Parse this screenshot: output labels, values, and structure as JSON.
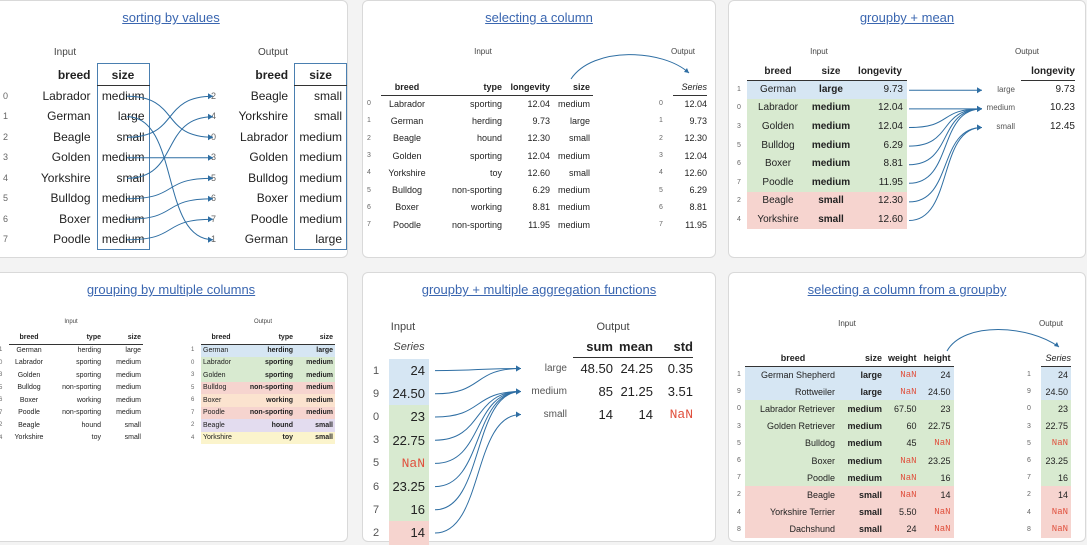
{
  "colors": {
    "blue": "#d6e6f3",
    "green": "#d8ead0",
    "red": "#f6d4cf",
    "orange": "#fbe3cf",
    "purple": "#e3dcef",
    "yellow": "#fbf4cc",
    "link": "#3a66b0",
    "arrow": "#2e6ea3"
  },
  "panel1": {
    "title": "sorting by values",
    "input_label": "Input",
    "output_label": "Output",
    "headers": [
      "breed",
      "size"
    ],
    "input_rows": [
      [
        "0",
        "Labrador",
        "medium"
      ],
      [
        "1",
        "German",
        "large"
      ],
      [
        "2",
        "Beagle",
        "small"
      ],
      [
        "3",
        "Golden",
        "medium"
      ],
      [
        "4",
        "Yorkshire",
        "small"
      ],
      [
        "5",
        "Bulldog",
        "medium"
      ],
      [
        "6",
        "Boxer",
        "medium"
      ],
      [
        "7",
        "Poodle",
        "medium"
      ]
    ],
    "output_rows": [
      [
        "2",
        "Beagle",
        "small"
      ],
      [
        "4",
        "Yorkshire",
        "small"
      ],
      [
        "0",
        "Labrador",
        "medium"
      ],
      [
        "3",
        "Golden",
        "medium"
      ],
      [
        "5",
        "Bulldog",
        "medium"
      ],
      [
        "6",
        "Boxer",
        "medium"
      ],
      [
        "7",
        "Poodle",
        "medium"
      ],
      [
        "1",
        "German",
        "large"
      ]
    ],
    "mapping": [
      2,
      7,
      0,
      3,
      1,
      4,
      5,
      6
    ]
  },
  "panel2": {
    "title": "selecting a column",
    "input_label": "Input",
    "output_label": "Output",
    "series_label": "Series",
    "headers": [
      "breed",
      "type",
      "longevity",
      "size"
    ],
    "rows": [
      [
        "0",
        "Labrador",
        "sporting",
        "12.04",
        "medium"
      ],
      [
        "1",
        "German",
        "herding",
        "9.73",
        "large"
      ],
      [
        "2",
        "Beagle",
        "hound",
        "12.30",
        "small"
      ],
      [
        "3",
        "Golden",
        "sporting",
        "12.04",
        "medium"
      ],
      [
        "4",
        "Yorkshire",
        "toy",
        "12.60",
        "small"
      ],
      [
        "5",
        "Bulldog",
        "non-sporting",
        "6.29",
        "medium"
      ],
      [
        "6",
        "Boxer",
        "working",
        "8.81",
        "medium"
      ],
      [
        "7",
        "Poodle",
        "non-sporting",
        "11.95",
        "medium"
      ]
    ],
    "series": [
      [
        "0",
        "12.04"
      ],
      [
        "1",
        "9.73"
      ],
      [
        "2",
        "12.30"
      ],
      [
        "3",
        "12.04"
      ],
      [
        "4",
        "12.60"
      ],
      [
        "5",
        "6.29"
      ],
      [
        "6",
        "8.81"
      ],
      [
        "7",
        "11.95"
      ]
    ]
  },
  "panel3": {
    "title": "groupby + mean",
    "input_label": "Input",
    "output_label": "Output",
    "headers": [
      "breed",
      "size",
      "longevity"
    ],
    "out_header": "longevity",
    "rows": [
      [
        "1",
        "German",
        "large",
        "9.73",
        "blue"
      ],
      [
        "0",
        "Labrador",
        "medium",
        "12.04",
        "green"
      ],
      [
        "3",
        "Golden",
        "medium",
        "12.04",
        "green"
      ],
      [
        "5",
        "Bulldog",
        "medium",
        "6.29",
        "green"
      ],
      [
        "6",
        "Boxer",
        "medium",
        "8.81",
        "green"
      ],
      [
        "7",
        "Poodle",
        "medium",
        "11.95",
        "green"
      ],
      [
        "2",
        "Beagle",
        "small",
        "12.30",
        "red"
      ],
      [
        "4",
        "Yorkshire",
        "small",
        "12.60",
        "red"
      ]
    ],
    "output": [
      [
        "large",
        "9.73"
      ],
      [
        "medium",
        "10.23"
      ],
      [
        "small",
        "12.45"
      ]
    ]
  },
  "panel4": {
    "title": "grouping by multiple columns",
    "input_label": "Input",
    "output_label": "Output",
    "headers": [
      "breed",
      "type",
      "size"
    ],
    "input_rows": [
      [
        "1",
        "German",
        "herding",
        "large"
      ],
      [
        "0",
        "Labrador",
        "sporting",
        "medium"
      ],
      [
        "3",
        "Golden",
        "sporting",
        "medium"
      ],
      [
        "5",
        "Bulldog",
        "non-sporting",
        "medium"
      ],
      [
        "6",
        "Boxer",
        "working",
        "medium"
      ],
      [
        "7",
        "Poodle",
        "non-sporting",
        "medium"
      ],
      [
        "2",
        "Beagle",
        "hound",
        "small"
      ],
      [
        "4",
        "Yorkshire",
        "toy",
        "small"
      ]
    ],
    "output_rows": [
      [
        "1",
        "German",
        "herding",
        "large",
        "blue"
      ],
      [
        "0",
        "Labrador",
        "sporting",
        "medium",
        "green"
      ],
      [
        "3",
        "Golden",
        "sporting",
        "medium",
        "green"
      ],
      [
        "5",
        "Bulldog",
        "non-sporting",
        "medium",
        "red"
      ],
      [
        "6",
        "Boxer",
        "working",
        "medium",
        "orange"
      ],
      [
        "7",
        "Poodle",
        "non-sporting",
        "medium",
        "red"
      ],
      [
        "2",
        "Beagle",
        "hound",
        "small",
        "purple"
      ],
      [
        "4",
        "Yorkshire",
        "toy",
        "small",
        "yellow"
      ]
    ]
  },
  "panel5": {
    "title": "groupby + multiple aggregation functions",
    "input_label": "Input",
    "series_label": "Series",
    "output_label": "Output",
    "series": [
      [
        "1",
        "24",
        "blue"
      ],
      [
        "9",
        "24.50",
        "blue"
      ],
      [
        "0",
        "23",
        "green"
      ],
      [
        "3",
        "22.75",
        "green"
      ],
      [
        "5",
        "NaN",
        "green"
      ],
      [
        "6",
        "23.25",
        "green"
      ],
      [
        "7",
        "16",
        "green"
      ],
      [
        "2",
        "14",
        "red"
      ]
    ],
    "out_headers": [
      "sum",
      "mean",
      "std"
    ],
    "output": [
      [
        "large",
        "48.50",
        "24.25",
        "0.35"
      ],
      [
        "medium",
        "85",
        "21.25",
        "3.51"
      ],
      [
        "small",
        "14",
        "14",
        "NaN"
      ]
    ]
  },
  "panel6": {
    "title": "selecting a column from a groupby",
    "input_label": "Input",
    "output_label": "Output",
    "series_label": "Series",
    "headers": [
      "breed",
      "size",
      "weight",
      "height"
    ],
    "rows": [
      [
        "1",
        "German Shepherd",
        "large",
        "NaN",
        "24",
        "blue"
      ],
      [
        "9",
        "Rottweiler",
        "large",
        "NaN",
        "24.50",
        "blue"
      ],
      [
        "0",
        "Labrador Retriever",
        "medium",
        "67.50",
        "23",
        "green"
      ],
      [
        "3",
        "Golden Retriever",
        "medium",
        "60",
        "22.75",
        "green"
      ],
      [
        "5",
        "Bulldog",
        "medium",
        "45",
        "NaN",
        "green"
      ],
      [
        "6",
        "Boxer",
        "medium",
        "NaN",
        "23.25",
        "green"
      ],
      [
        "7",
        "Poodle",
        "medium",
        "NaN",
        "16",
        "green"
      ],
      [
        "2",
        "Beagle",
        "small",
        "NaN",
        "14",
        "red"
      ],
      [
        "4",
        "Yorkshire Terrier",
        "small",
        "5.50",
        "NaN",
        "red"
      ],
      [
        "8",
        "Dachshund",
        "small",
        "24",
        "NaN",
        "red"
      ]
    ],
    "series": [
      [
        "1",
        "24",
        "blue"
      ],
      [
        "9",
        "24.50",
        "blue"
      ],
      [
        "0",
        "23",
        "green"
      ],
      [
        "3",
        "22.75",
        "green"
      ],
      [
        "5",
        "NaN",
        "green"
      ],
      [
        "6",
        "23.25",
        "green"
      ],
      [
        "7",
        "16",
        "green"
      ],
      [
        "2",
        "14",
        "red"
      ],
      [
        "4",
        "NaN",
        "red"
      ],
      [
        "8",
        "NaN",
        "red"
      ]
    ]
  }
}
